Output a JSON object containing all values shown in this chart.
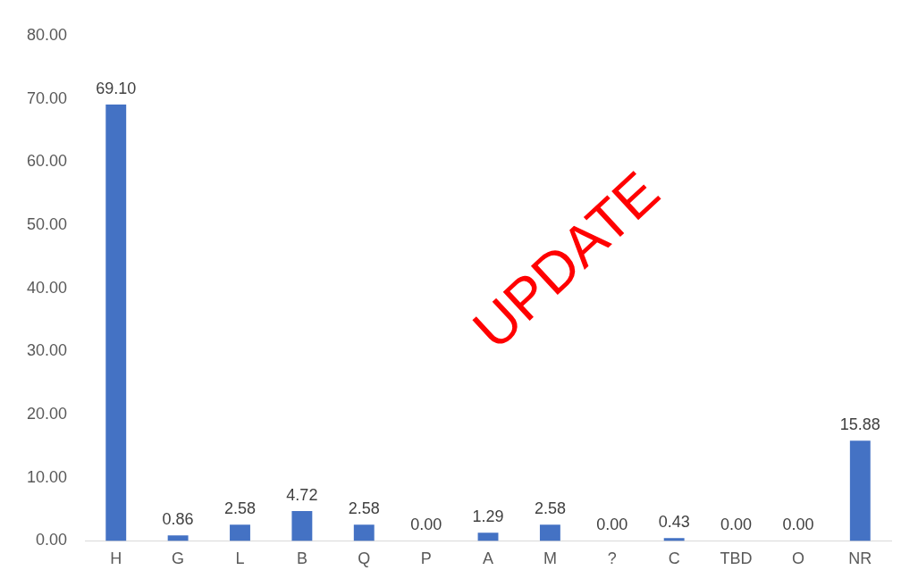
{
  "chart_data": {
    "type": "bar",
    "categories": [
      "H",
      "G",
      "L",
      "B",
      "Q",
      "P",
      "A",
      "M",
      "?",
      "C",
      "TBD",
      "O",
      "NR"
    ],
    "series": [
      {
        "color": "#4472c4",
        "values": [
          69.1,
          0.86,
          2.58,
          4.72,
          2.58,
          0.0,
          1.29,
          2.58,
          0.0,
          0.43,
          0.0,
          0.0,
          15.88
        ]
      }
    ],
    "value_labels": [
      "69.10",
      "0.86",
      "2.58",
      "4.72",
      "2.58",
      "0.00",
      "1.29",
      "2.58",
      "0.00",
      "0.43",
      "0.00",
      "0.00",
      "15.88"
    ],
    "ylim": [
      0,
      80
    ],
    "yticks": [
      {
        "value": 0,
        "label": "0.00"
      },
      {
        "value": 10,
        "label": "10.00"
      },
      {
        "value": 20,
        "label": "20.00"
      },
      {
        "value": 30,
        "label": "30.00"
      },
      {
        "value": 40,
        "label": "40.00"
      },
      {
        "value": 50,
        "label": "50.00"
      },
      {
        "value": 60,
        "label": "60.00"
      },
      {
        "value": 70,
        "label": "70.00"
      },
      {
        "value": 80,
        "label": "80.00"
      }
    ],
    "annotations": [
      "UPDATE"
    ],
    "legend": false
  }
}
